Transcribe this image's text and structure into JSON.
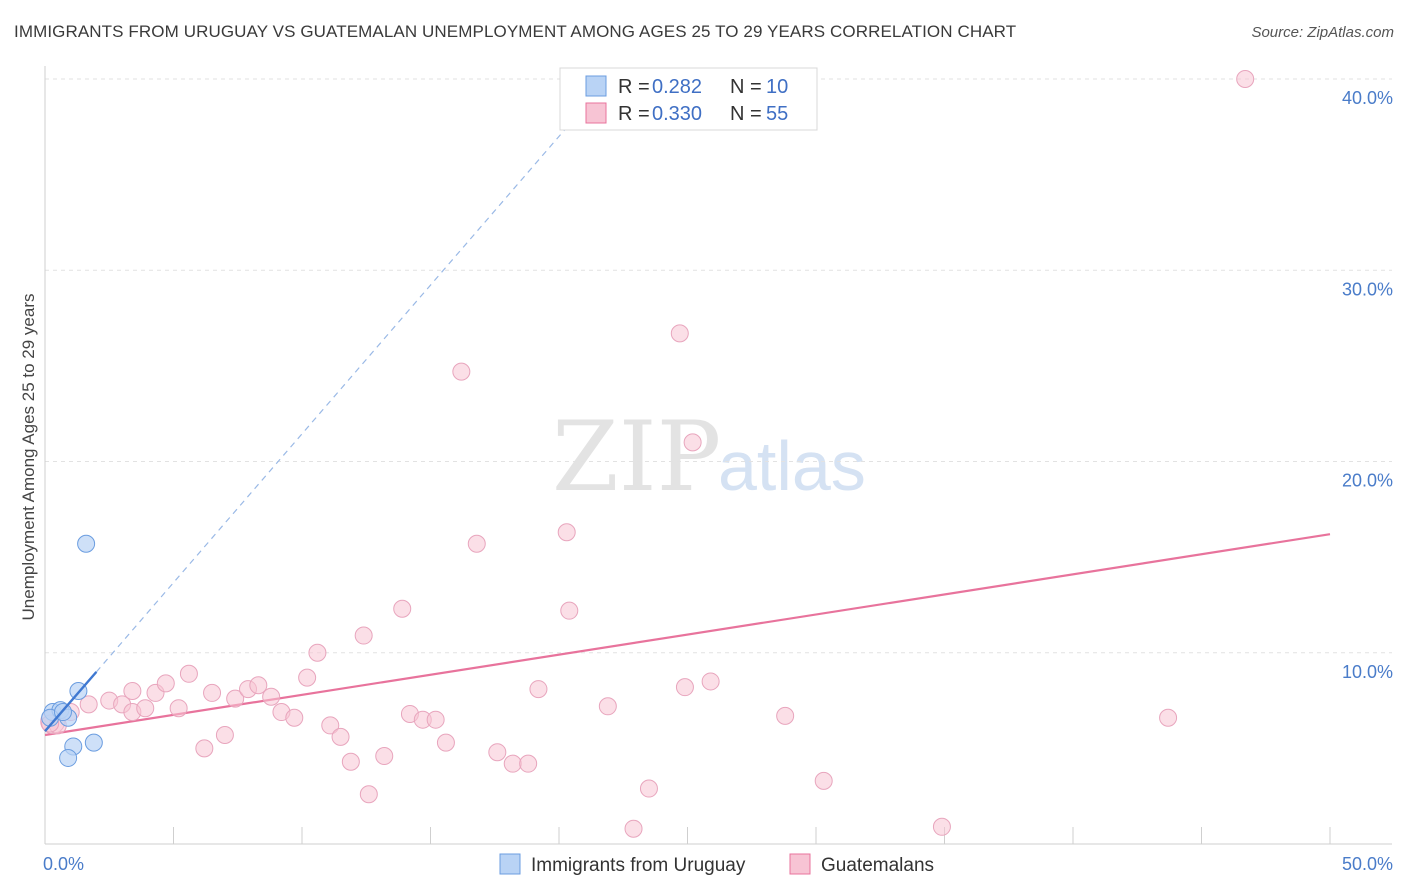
{
  "title": "IMMIGRANTS FROM URUGUAY VS GUATEMALAN UNEMPLOYMENT AMONG AGES 25 TO 29 YEARS CORRELATION CHART",
  "source": "Source: ZipAtlas.com",
  "watermark": {
    "part1": "ZIP",
    "part2": "atlas"
  },
  "colors": {
    "blue": "#6b9de0",
    "blue_fill": "#b9d3f5",
    "pink": "#e8739c",
    "pink_fill": "#f7c4d4",
    "tick": "#4a7cc9"
  },
  "legend": {
    "rows": [
      {
        "r_label": "R = ",
        "r_value": "0.282",
        "n_label": "N = ",
        "n_value": "10"
      },
      {
        "r_label": "R = ",
        "r_value": "0.330",
        "n_label": "N = ",
        "n_value": "55"
      }
    ]
  },
  "chart_data": {
    "type": "scatter",
    "title": "IMMIGRANTS FROM URUGUAY VS GUATEMALAN UNEMPLOYMENT AMONG AGES 25 TO 29 YEARS CORRELATION CHART",
    "xlabel": "",
    "ylabel": "Unemployment Among Ages 25 to 29 years",
    "xlim": [
      0,
      50
    ],
    "ylim": [
      0,
      40
    ],
    "x_tick_labels": [
      "0.0%",
      "50.0%"
    ],
    "y_ticks": [
      10,
      20,
      30,
      40
    ],
    "y_tick_labels": [
      "10.0%",
      "20.0%",
      "30.0%",
      "40.0%"
    ],
    "grid": true,
    "legend_position": "top-center",
    "series": [
      {
        "name": "Immigrants from Uruguay",
        "color": "#6b9de0",
        "points": [
          [
            0.3,
            6.9
          ],
          [
            0.6,
            7.0
          ],
          [
            0.9,
            6.6
          ],
          [
            1.1,
            5.1
          ],
          [
            0.9,
            4.5
          ],
          [
            1.3,
            8.0
          ],
          [
            1.9,
            5.3
          ],
          [
            1.6,
            15.7
          ],
          [
            0.2,
            6.6
          ],
          [
            0.7,
            6.9
          ]
        ],
        "trend": {
          "x": [
            0.0,
            2.0
          ],
          "y": [
            5.9,
            9.0
          ],
          "style": "solid"
        },
        "trend_extended": {
          "x": [
            2.0,
            20.9
          ],
          "y": [
            9.0,
            38.4
          ],
          "style": "dashed"
        }
      },
      {
        "name": "Guatemalans",
        "color": "#e8739c",
        "points": [
          [
            0.5,
            6.2
          ],
          [
            1.0,
            6.9
          ],
          [
            1.7,
            7.3
          ],
          [
            2.5,
            7.5
          ],
          [
            3.0,
            7.3
          ],
          [
            3.4,
            6.9
          ],
          [
            3.4,
            8.0
          ],
          [
            3.9,
            7.1
          ],
          [
            4.3,
            7.9
          ],
          [
            4.7,
            8.4
          ],
          [
            5.2,
            7.1
          ],
          [
            5.6,
            8.9
          ],
          [
            6.2,
            5.0
          ],
          [
            6.5,
            7.9
          ],
          [
            7.0,
            5.7
          ],
          [
            7.4,
            7.6
          ],
          [
            7.9,
            8.1
          ],
          [
            8.3,
            8.3
          ],
          [
            8.8,
            7.7
          ],
          [
            9.2,
            6.9
          ],
          [
            9.7,
            6.6
          ],
          [
            10.2,
            8.7
          ],
          [
            10.6,
            10.0
          ],
          [
            11.1,
            6.2
          ],
          [
            11.5,
            5.6
          ],
          [
            11.9,
            4.3
          ],
          [
            12.4,
            10.9
          ],
          [
            12.6,
            2.6
          ],
          [
            13.2,
            4.6
          ],
          [
            13.9,
            12.3
          ],
          [
            14.2,
            6.8
          ],
          [
            14.7,
            6.5
          ],
          [
            15.2,
            6.5
          ],
          [
            15.6,
            5.3
          ],
          [
            16.2,
            24.7
          ],
          [
            16.8,
            15.7
          ],
          [
            17.6,
            4.8
          ],
          [
            18.2,
            4.2
          ],
          [
            18.8,
            4.2
          ],
          [
            19.2,
            8.1
          ],
          [
            20.3,
            16.3
          ],
          [
            20.4,
            12.2
          ],
          [
            21.9,
            7.2
          ],
          [
            22.9,
            0.8
          ],
          [
            23.5,
            2.9
          ],
          [
            24.7,
            26.7
          ],
          [
            24.9,
            8.2
          ],
          [
            25.2,
            21.0
          ],
          [
            25.9,
            8.5
          ],
          [
            28.8,
            6.7
          ],
          [
            30.3,
            3.3
          ],
          [
            34.9,
            0.9
          ],
          [
            43.7,
            6.6
          ],
          [
            46.7,
            40.0
          ],
          [
            0.2,
            6.3
          ]
        ],
        "trend": {
          "x": [
            0.0,
            50.0
          ],
          "y": [
            5.7,
            16.2
          ],
          "style": "solid"
        }
      }
    ]
  }
}
